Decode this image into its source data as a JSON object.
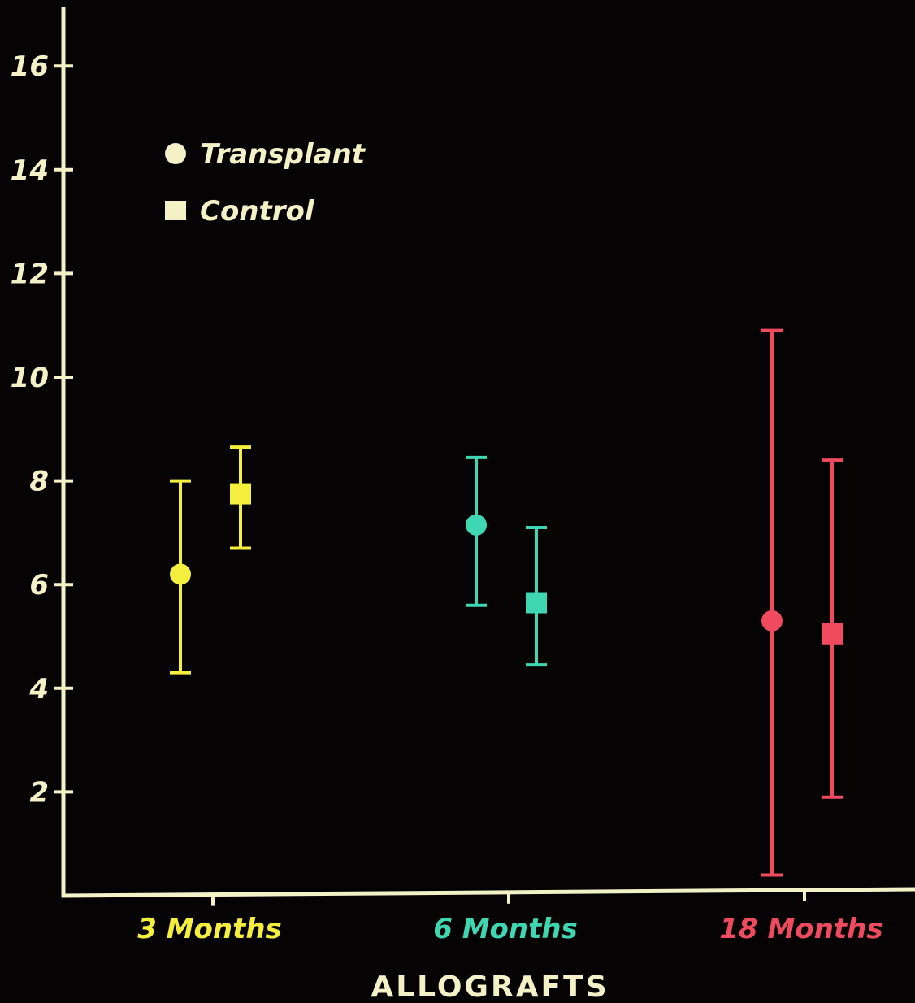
{
  "chart_data": {
    "type": "scatter",
    "title": "",
    "xlabel": "ALLOGRAFTS",
    "ylabel": "",
    "categories": [
      "3 Months",
      "6 Months",
      "18 Months"
    ],
    "category_colors": [
      "#f4ee3c",
      "#3fd7b1",
      "#f04a5e"
    ],
    "ylim": [
      0,
      17
    ],
    "yticks": [
      2,
      4,
      6,
      8,
      10,
      12,
      14,
      16
    ],
    "grid": false,
    "legend_position": "top-left",
    "series": [
      {
        "name": "Transplant",
        "marker": "circle",
        "values": [
          6.2,
          7.15,
          5.3
        ],
        "error_low": [
          4.3,
          5.6,
          0.4
        ],
        "error_high": [
          8.0,
          8.45,
          10.9
        ]
      },
      {
        "name": "Control",
        "marker": "square",
        "values": [
          7.75,
          5.65,
          5.05
        ],
        "error_low": [
          6.7,
          4.45,
          1.9
        ],
        "error_high": [
          8.65,
          7.1,
          8.4
        ]
      }
    ],
    "axis_color": "#f3f1c6",
    "legend_color": "#f3f1c6"
  }
}
